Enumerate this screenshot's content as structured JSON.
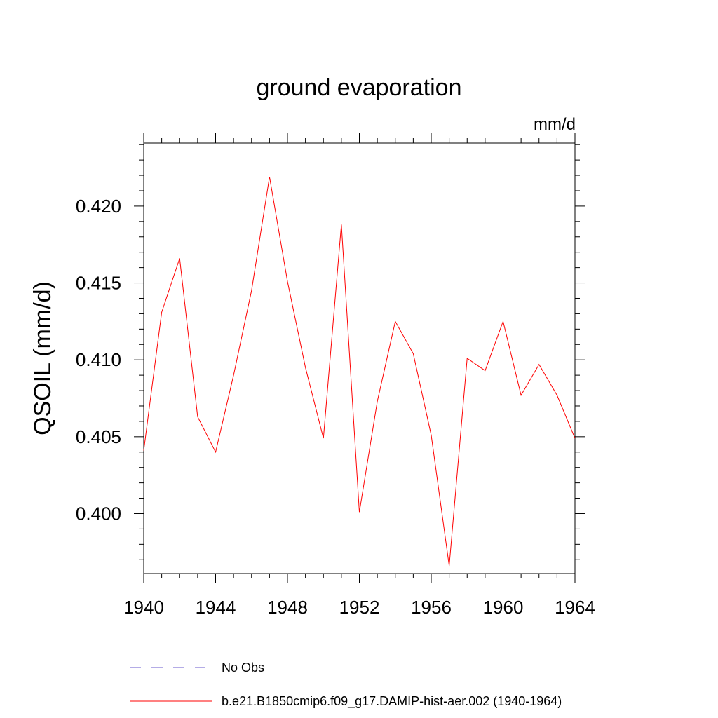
{
  "chart_data": {
    "type": "line",
    "title": "ground evaporation",
    "units_label": "mm/d",
    "ylabel": "QSOIL  (mm/d)",
    "xlabel": "",
    "xlim": [
      1940,
      1964
    ],
    "ylim": [
      0.3961,
      0.4241
    ],
    "x_ticks": [
      1940,
      1944,
      1948,
      1952,
      1956,
      1960,
      1964
    ],
    "y_ticks": [
      0.4,
      0.405,
      0.41,
      0.415,
      0.42
    ],
    "y_tick_labels": [
      "0.400",
      "0.405",
      "0.410",
      "0.415",
      "0.420"
    ],
    "grid": false,
    "legend_position": "bottom",
    "x": [
      1940,
      1941,
      1942,
      1943,
      1944,
      1945,
      1946,
      1947,
      1948,
      1949,
      1950,
      1951,
      1952,
      1953,
      1954,
      1955,
      1956,
      1957,
      1958,
      1959,
      1960,
      1961,
      1962,
      1963,
      1964
    ],
    "series": [
      {
        "name": "b.e21.B1850cmip6.f09_g17.DAMIP-hist-aer.002 (1940-1964)",
        "color": "#ff0000",
        "style": "solid",
        "values": [
          0.4041,
          0.4131,
          0.4166,
          0.4063,
          0.404,
          0.409,
          0.4145,
          0.4219,
          0.4151,
          0.4095,
          0.4049,
          0.4188,
          0.4001,
          0.4073,
          0.4125,
          0.4104,
          0.4051,
          0.3966,
          0.4101,
          0.4093,
          0.4125,
          0.4077,
          0.4097,
          0.4077,
          0.4049
        ]
      }
    ],
    "legend": [
      {
        "label": "No Obs",
        "color": "#6a5acd",
        "style": "dashed"
      },
      {
        "label": "b.e21.B1850cmip6.f09_g17.DAMIP-hist-aer.002 (1940-1964)",
        "color": "#ff0000",
        "style": "solid"
      }
    ]
  }
}
